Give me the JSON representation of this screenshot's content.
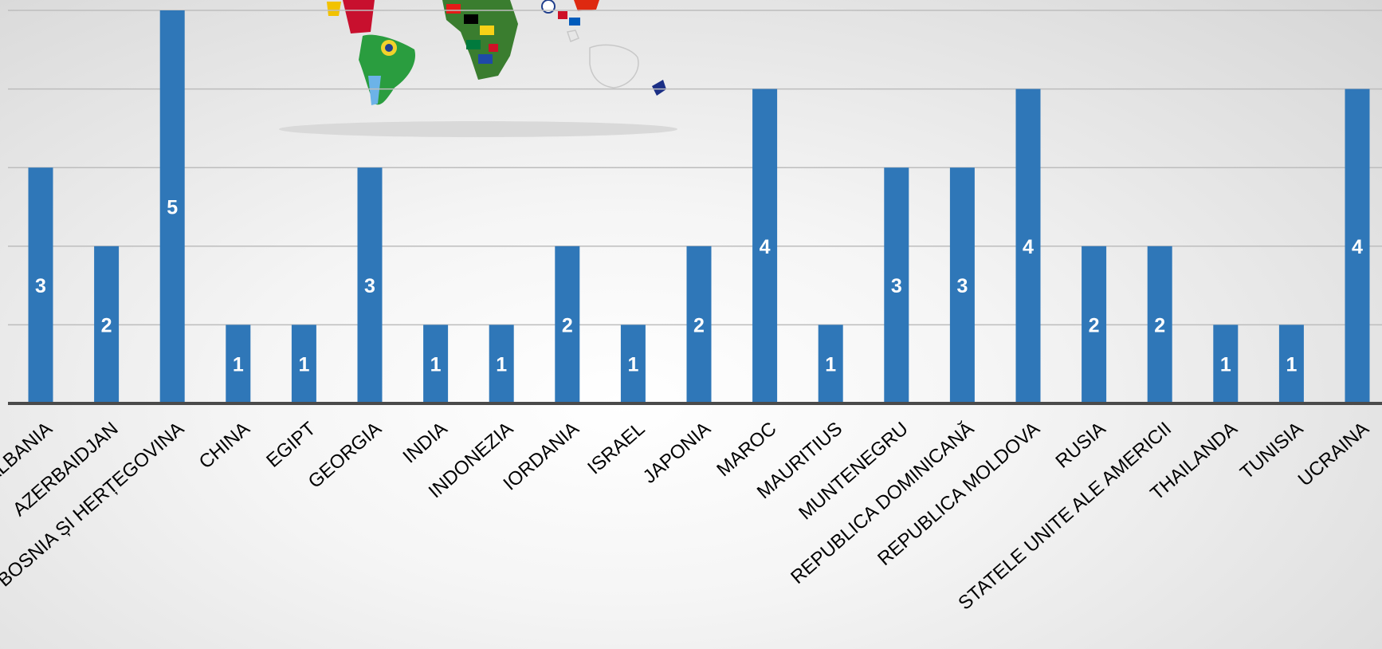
{
  "chart_data": {
    "type": "bar",
    "title": "",
    "xlabel": "",
    "ylabel": "",
    "ylim": [
      0,
      5
    ],
    "grid": true,
    "legend": "none",
    "bar_color": "#2f77b8",
    "categories": [
      "ALBANIA",
      "AZERBAIDJAN",
      "BOSNIA ȘI HERȚEGOVINA",
      "CHINA",
      "EGIPT",
      "GEORGIA",
      "INDIA",
      "INDONEZIA",
      "IORDANIA",
      "ISRAEL",
      "JAPONIA",
      "MAROC",
      "MAURITIUS",
      "MUNTENEGRU",
      "REPUBLICA DOMINICANĂ",
      "REPUBLICA MOLDOVA",
      "RUSIA",
      "STATELE UNITE ALE AMERICII",
      "THAILANDA",
      "TUNISIA",
      "UCRAINA"
    ],
    "values": [
      3,
      2,
      5,
      1,
      1,
      3,
      1,
      1,
      2,
      1,
      2,
      4,
      1,
      3,
      3,
      4,
      2,
      2,
      1,
      1,
      4
    ]
  },
  "decoration": {
    "background_image": "world-map-flags"
  }
}
